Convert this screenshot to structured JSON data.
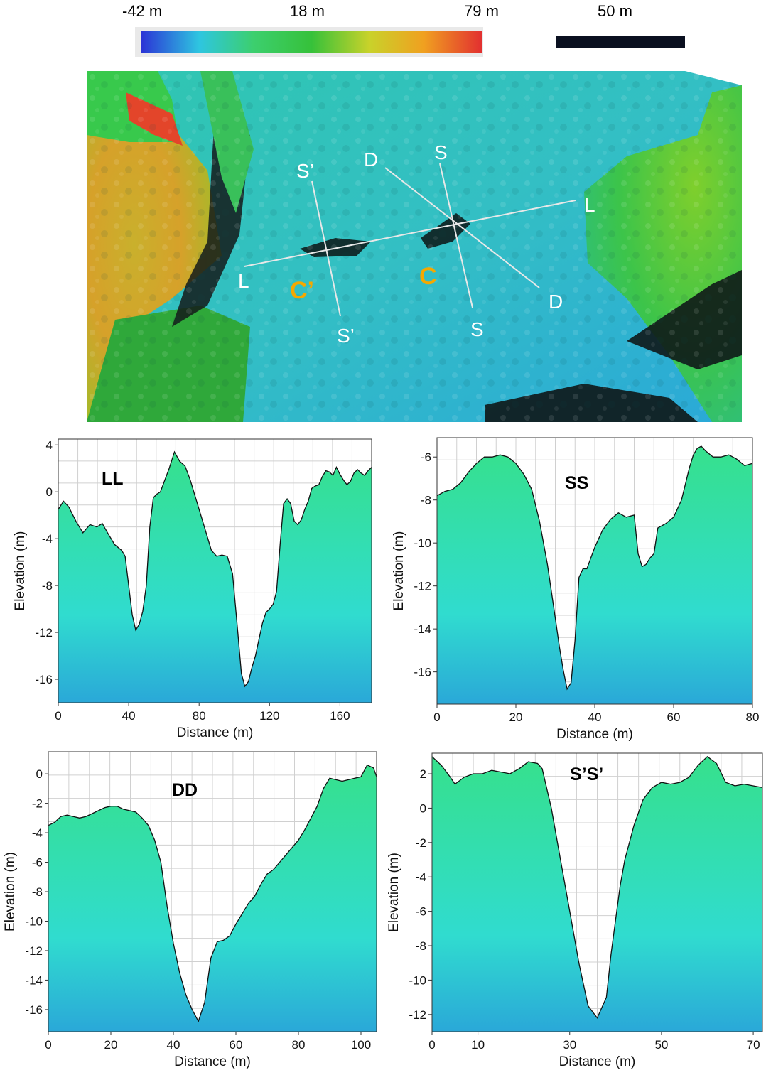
{
  "legend": {
    "min_label": "-42 m",
    "mid_label": "18 m",
    "max_label": "79 m",
    "scale_label": "50 m",
    "colors": [
      "#2b34d6",
      "#2ec6e0",
      "#3ccf6e",
      "#36c13a",
      "#c9d22a",
      "#f0a020",
      "#e23030"
    ]
  },
  "map": {
    "labels": {
      "L1": "L",
      "L2": "L",
      "S1": "S",
      "S2": "S",
      "D1": "D",
      "D2": "D",
      "Sp1": "S’",
      "Sp2": "S’",
      "C": "C",
      "Cp": "C’"
    },
    "label_color": "#ffffff",
    "crater_label_color": "#f5a800"
  },
  "chart_data": [
    {
      "type": "area",
      "title": "LL",
      "xlabel": "Distance (m)",
      "ylabel": "Elevation (m)",
      "xlim": [
        0,
        178
      ],
      "ylim": [
        -18,
        4.5
      ],
      "xticks": [
        0,
        40,
        80,
        120,
        160
      ],
      "yticks": [
        4,
        0,
        -4,
        -8,
        -12,
        -16
      ],
      "x": [
        0,
        3,
        6,
        10,
        14,
        18,
        22,
        25,
        28,
        32,
        36,
        38,
        40,
        42,
        44,
        46,
        48,
        50,
        52,
        54,
        56,
        58,
        60,
        63,
        66,
        69,
        72,
        75,
        78,
        81,
        84,
        87,
        90,
        93,
        96,
        99,
        102,
        104,
        106,
        108,
        110,
        112,
        114,
        116,
        118,
        120,
        122,
        124,
        126,
        128,
        130,
        132,
        134,
        136,
        138,
        140,
        142,
        144,
        146,
        148,
        150,
        152,
        154,
        156,
        158,
        160,
        162,
        164,
        166,
        168,
        170,
        172,
        174,
        176,
        178
      ],
      "values": [
        -1.5,
        -0.8,
        -1.3,
        -2.5,
        -3.5,
        -2.8,
        -3.0,
        -2.7,
        -3.5,
        -4.5,
        -5.0,
        -5.5,
        -8.0,
        -10.5,
        -11.8,
        -11.3,
        -10.2,
        -8.0,
        -3.0,
        -0.5,
        -0.2,
        0.0,
        0.8,
        2.0,
        3.4,
        2.6,
        2.2,
        1.0,
        -0.5,
        -2.0,
        -3.5,
        -5.0,
        -5.5,
        -5.4,
        -5.5,
        -7.0,
        -12.0,
        -15.5,
        -16.6,
        -16.2,
        -15.0,
        -14.0,
        -12.6,
        -11.2,
        -10.3,
        -10.0,
        -9.6,
        -8.5,
        -4.5,
        -1.0,
        -0.6,
        -1.0,
        -2.5,
        -2.8,
        -2.4,
        -1.5,
        -0.8,
        0.3,
        0.5,
        0.6,
        1.3,
        1.8,
        1.7,
        1.4,
        2.1,
        1.5,
        1.0,
        0.6,
        0.9,
        1.6,
        1.9,
        1.6,
        1.4,
        1.8,
        2.1
      ]
    },
    {
      "type": "area",
      "title": "SS",
      "xlabel": "Distance (m)",
      "ylabel": "Elevation (m)",
      "xlim": [
        0,
        80
      ],
      "ylim": [
        -17.5,
        -5.1
      ],
      "xticks": [
        0,
        20,
        40,
        60,
        80
      ],
      "yticks": [
        -6,
        -8,
        -10,
        -12,
        -14,
        -16
      ],
      "x": [
        0,
        2,
        4,
        6,
        8,
        10,
        12,
        14,
        16,
        18,
        20,
        22,
        24,
        26,
        28,
        30,
        31,
        32,
        33,
        34,
        35,
        36,
        37,
        38,
        40,
        42,
        44,
        46,
        48,
        50,
        51,
        52,
        53,
        54,
        55,
        56,
        58,
        60,
        62,
        64,
        65,
        66,
        67,
        68,
        70,
        72,
        74,
        76,
        78,
        80
      ],
      "values": [
        -7.8,
        -7.6,
        -7.5,
        -7.2,
        -6.7,
        -6.3,
        -6.0,
        -6.0,
        -5.9,
        -6.0,
        -6.3,
        -6.8,
        -7.5,
        -9.0,
        -11.0,
        -13.5,
        -14.8,
        -15.9,
        -16.8,
        -16.5,
        -14.5,
        -11.6,
        -11.2,
        -11.2,
        -10.2,
        -9.4,
        -8.9,
        -8.6,
        -8.8,
        -8.7,
        -10.5,
        -11.1,
        -11.0,
        -10.7,
        -10.5,
        -9.3,
        -9.1,
        -8.8,
        -8.0,
        -6.5,
        -5.9,
        -5.6,
        -5.5,
        -5.7,
        -6.0,
        -6.0,
        -5.9,
        -6.1,
        -6.4,
        -6.3
      ]
    },
    {
      "type": "area",
      "title": "DD",
      "xlabel": "Distance (m)",
      "ylabel": "Elevation (m)",
      "xlim": [
        0,
        105
      ],
      "ylim": [
        -17.5,
        1.5
      ],
      "xticks": [
        0,
        20,
        40,
        60,
        80,
        100
      ],
      "yticks": [
        0,
        -2,
        -4,
        -6,
        -8,
        -10,
        -12,
        -14,
        -16
      ],
      "x": [
        0,
        2,
        4,
        6,
        8,
        10,
        12,
        14,
        16,
        18,
        20,
        22,
        24,
        26,
        28,
        30,
        32,
        34,
        36,
        38,
        40,
        42,
        44,
        46,
        48,
        50,
        52,
        54,
        56,
        58,
        60,
        62,
        64,
        66,
        68,
        70,
        72,
        74,
        76,
        78,
        80,
        82,
        84,
        86,
        88,
        90,
        92,
        94,
        96,
        98,
        100,
        102,
        104,
        105
      ],
      "values": [
        -3.5,
        -3.3,
        -2.9,
        -2.8,
        -2.9,
        -3.0,
        -2.9,
        -2.7,
        -2.5,
        -2.3,
        -2.2,
        -2.2,
        -2.4,
        -2.5,
        -2.6,
        -3.0,
        -3.5,
        -4.5,
        -6.0,
        -9.0,
        -11.5,
        -13.5,
        -15.0,
        -16.0,
        -16.8,
        -15.5,
        -12.5,
        -11.4,
        -11.3,
        -11.0,
        -10.2,
        -9.5,
        -8.8,
        -8.3,
        -7.5,
        -6.8,
        -6.5,
        -6.0,
        -5.5,
        -5.0,
        -4.5,
        -3.8,
        -3.0,
        -2.2,
        -1.0,
        -0.3,
        -0.4,
        -0.5,
        -0.4,
        -0.3,
        -0.2,
        0.6,
        0.4,
        -0.2
      ]
    },
    {
      "type": "area",
      "title": "S’S’",
      "xlabel": "Distance (m)",
      "ylabel": "Elevation (m)",
      "xlim": [
        0,
        72
      ],
      "ylim": [
        -13,
        3.2
      ],
      "xticks": [
        0,
        10,
        30,
        50,
        70
      ],
      "yticks": [
        2,
        0,
        -2,
        -4,
        -6,
        -8,
        -10,
        -12
      ],
      "x": [
        0,
        2,
        4,
        5,
        7,
        9,
        11,
        13,
        15,
        17,
        19,
        21,
        23,
        24,
        26,
        28,
        30,
        32,
        34,
        36,
        38,
        39,
        40,
        41,
        42,
        44,
        46,
        48,
        50,
        52,
        54,
        56,
        58,
        60,
        62,
        64,
        66,
        68,
        70,
        72
      ],
      "values": [
        3.0,
        2.5,
        1.8,
        1.4,
        1.8,
        2.0,
        2.0,
        2.2,
        2.1,
        2.0,
        2.3,
        2.7,
        2.6,
        2.3,
        0.0,
        -3.0,
        -6.0,
        -9.0,
        -11.5,
        -12.2,
        -11.0,
        -8.5,
        -6.5,
        -4.5,
        -3.0,
        -1.0,
        0.5,
        1.2,
        1.5,
        1.4,
        1.5,
        1.8,
        2.5,
        3.0,
        2.6,
        1.5,
        1.3,
        1.4,
        1.3,
        1.2
      ]
    }
  ]
}
